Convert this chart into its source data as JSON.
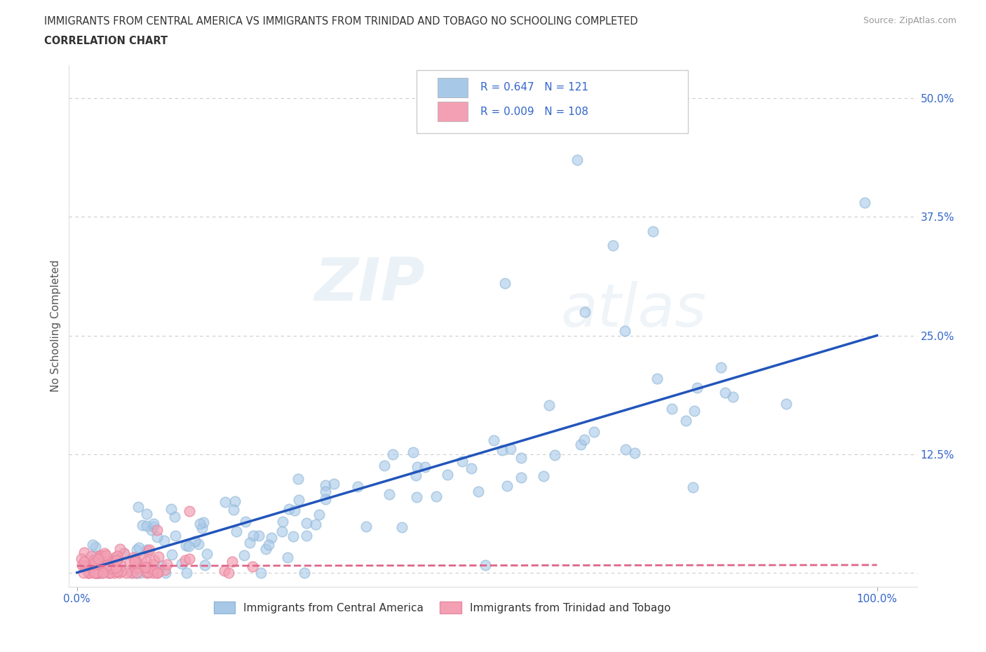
{
  "title_line1": "IMMIGRANTS FROM CENTRAL AMERICA VS IMMIGRANTS FROM TRINIDAD AND TOBAGO NO SCHOOLING COMPLETED",
  "title_line2": "CORRELATION CHART",
  "source_text": "Source: ZipAtlas.com",
  "ylabel": "No Schooling Completed",
  "xlim": [
    -0.01,
    1.05
  ],
  "ylim": [
    -0.015,
    0.535
  ],
  "blue_R": 0.647,
  "blue_N": 121,
  "pink_R": 0.009,
  "pink_N": 108,
  "blue_color": "#a8c8e8",
  "pink_color": "#f4a0b4",
  "blue_line_color": "#2255bb",
  "pink_line_color": "#dd6688",
  "blue_edge_color": "#90b8d8",
  "pink_edge_color": "#e888a0",
  "background_color": "#ffffff",
  "grid_color": "#cccccc",
  "tick_color": "#3366cc",
  "yticks": [
    0.0,
    0.125,
    0.25,
    0.375,
    0.5
  ],
  "ytick_labels": [
    "",
    "12.5%",
    "25.0%",
    "37.5%",
    "50.0%"
  ],
  "xtick_labels": [
    "0.0%",
    "100.0%"
  ],
  "blue_trend": [
    0.0,
    0.0,
    1.0,
    0.25
  ],
  "pink_trend": [
    0.0,
    0.007,
    1.0,
    0.008
  ]
}
